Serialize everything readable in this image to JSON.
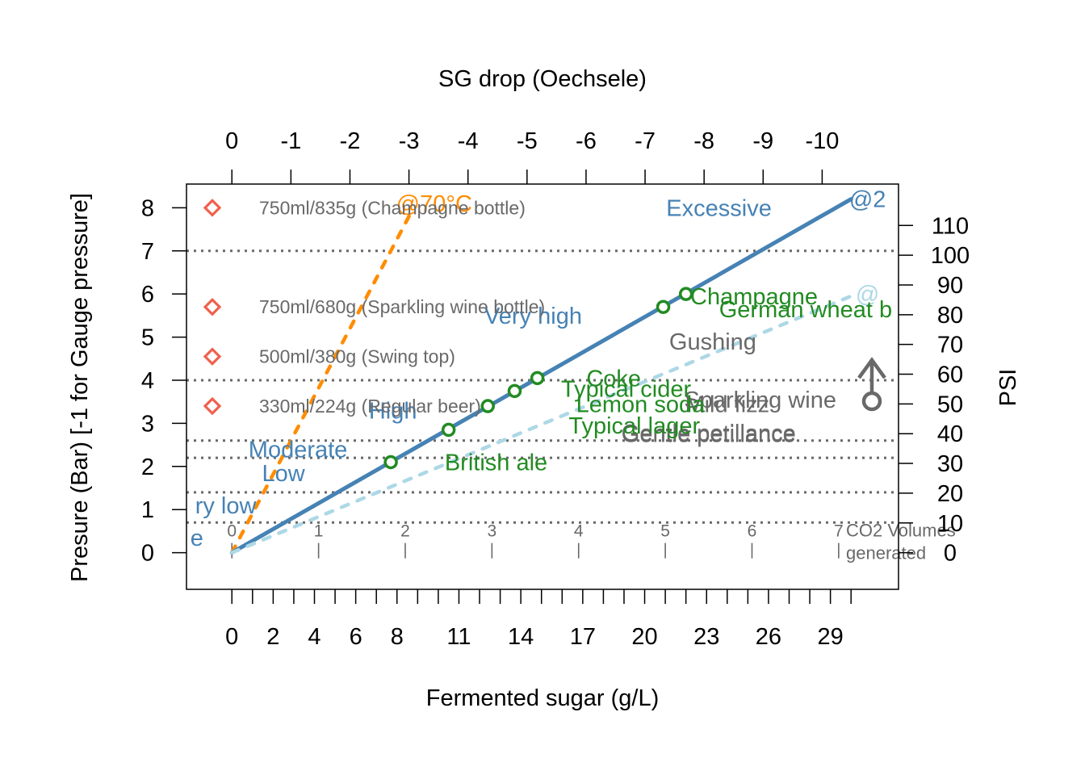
{
  "chart_data": {
    "type": "line",
    "xlabel": "Fermented sugar (g/L)",
    "ylabel": "Presure (Bar) [-1 for Gauge pressure]",
    "top_label": "SG drop (Oechsele)",
    "right_label": "PSI",
    "xlim": [
      -2.2,
      32.3
    ],
    "ylim": [
      -0.85,
      8.55
    ],
    "bottom_ticks": [
      "0",
      "2",
      "4",
      "6",
      "8",
      "11",
      "14",
      "17",
      "20",
      "23",
      "26",
      "29"
    ],
    "bottom_tick_values": [
      0,
      2,
      4,
      6,
      8,
      11,
      14,
      17,
      20,
      23,
      26,
      29
    ],
    "bottom_minor_ticks": [
      1,
      3,
      5,
      7,
      9,
      10,
      12,
      13,
      15,
      16,
      18,
      19,
      21,
      22,
      24,
      25,
      27,
      28,
      30
    ],
    "top_ticks": [
      "0",
      "-1",
      "-2",
      "-3",
      "-4",
      "-5",
      "-6",
      "-7",
      "-8",
      "-9",
      "-10"
    ],
    "top_tick_values": [
      0,
      2.86,
      5.72,
      8.58,
      11.44,
      14.3,
      17.16,
      20.02,
      22.88,
      25.74,
      28.6
    ],
    "left_ticks": [
      "0",
      "1",
      "2",
      "3",
      "4",
      "5",
      "6",
      "7",
      "8"
    ],
    "left_tick_values": [
      0,
      1,
      2,
      3,
      4,
      5,
      6,
      7,
      8
    ],
    "right_ticks": [
      "0",
      "10",
      "20",
      "30",
      "40",
      "50",
      "60",
      "70",
      "80",
      "90",
      "100",
      "110"
    ],
    "right_tick_values": [
      0,
      0.69,
      1.38,
      2.07,
      2.76,
      3.45,
      4.14,
      4.83,
      5.52,
      6.21,
      6.9,
      7.59
    ],
    "co2_volume_ticks": [
      "0",
      "1",
      "2",
      "3",
      "4",
      "5",
      "6",
      "7"
    ],
    "co2_volume_values": [
      0,
      4.2,
      8.4,
      12.6,
      16.8,
      21,
      25.2,
      29.4
    ],
    "co2_volume_label": [
      "CO2 Volumes",
      "generated"
    ],
    "guide_lines_bar": [
      0.7,
      1.4,
      2.2,
      2.6,
      4.0,
      7.0
    ],
    "series": [
      {
        "name": "@70°C",
        "x": [
          0,
          8.8
        ],
        "y": [
          0,
          8.0
        ],
        "color": "#ff8c00",
        "style": "dashed"
      },
      {
        "x": [
          0,
          30
        ],
        "y": [
          0,
          8.2
        ],
        "color": "#4682b4",
        "style": "solid"
      },
      {
        "x": [
          0,
          30
        ],
        "y": [
          0,
          5.95
        ],
        "color": "#add8e6",
        "style": "dashed"
      }
    ],
    "series_end_labels": [
      {
        "text": "@70°C",
        "x": 9.8,
        "y": 8.1,
        "color": "#ff8c00"
      },
      {
        "text": "@2",
        "x": 30.8,
        "y": 8.2,
        "color": "#4682b4"
      },
      {
        "text": "@",
        "x": 30.8,
        "y": 6.0,
        "color": "#add8e6"
      }
    ],
    "level_labels": [
      {
        "text": "Excessive",
        "x": 23.6,
        "y": 8.0
      },
      {
        "text": "Very high",
        "x": 14.6,
        "y": 5.5
      },
      {
        "text": "High",
        "x": 7.8,
        "y": 3.3
      },
      {
        "text": "Moderate",
        "x": 3.2,
        "y": 2.4
      },
      {
        "text": "Low",
        "x": 2.5,
        "y": 1.85
      },
      {
        "text": "ry low",
        "x": -0.3,
        "y": 1.1
      },
      {
        "text": "e",
        "x": -1.7,
        "y": 0.35
      }
    ],
    "style_points": [
      {
        "label": "British ale",
        "x": 7.7,
        "y": 2.1
      },
      {
        "label": "Typical lager",
        "x": 10.5,
        "y": 2.85
      },
      {
        "label": "Lemon soda",
        "x": 12.4,
        "y": 3.4
      },
      {
        "label": "Typical cider",
        "x": 13.7,
        "y": 3.75
      },
      {
        "label": "Coke",
        "x": 14.8,
        "y": 4.05
      },
      {
        "label": "Champagne",
        "x": 20.9,
        "y": 5.7
      },
      {
        "label": "German wheat b",
        "x": 22.0,
        "y": 6.0
      }
    ],
    "style_point_color": "#228b22",
    "style_label_positions": [
      {
        "x": 12.8,
        "y": 2.1
      },
      {
        "x": 19.5,
        "y": 2.95
      },
      {
        "x": 19.8,
        "y": 3.45
      },
      {
        "x": 19.1,
        "y": 3.8
      },
      {
        "x": 18.5,
        "y": 4.05
      },
      {
        "x": 25.3,
        "y": 5.95
      },
      {
        "x": 27.8,
        "y": 5.65
      }
    ],
    "perception_labels": [
      {
        "text": "Gushing",
        "x": 23.3,
        "y": 4.9
      },
      {
        "text": "Sparkling wine",
        "x": 25.6,
        "y": 3.55
      },
      {
        "text": "Mild fizz",
        "x": 24.0,
        "y": 3.45
      },
      {
        "text": "Gentle petillance",
        "x": 23.1,
        "y": 2.75
      },
      {
        "text": "Gentle petillance",
        "x": 23.1,
        "y": 2.78
      }
    ],
    "perception_color": "#696969",
    "bottle_markers": [
      {
        "label": "750ml/835g (Champagne bottle)",
        "y": 8.0
      },
      {
        "label": "750ml/680g (Sparkling wine bottle)",
        "y": 5.7
      },
      {
        "label": "500ml/380g (Swing top)",
        "y": 4.55
      },
      {
        "label": "330ml/224g (Regular beer)",
        "y": 3.4
      }
    ],
    "bottle_marker_color": "#f0604d",
    "bottle_label_color": "#696969",
    "colors": {
      "guide": "#696969",
      "level_text": "#4682b4",
      "gauge_icon": "#696969",
      "co2_scale": "#696969"
    },
    "grid": false,
    "legend": "none"
  }
}
